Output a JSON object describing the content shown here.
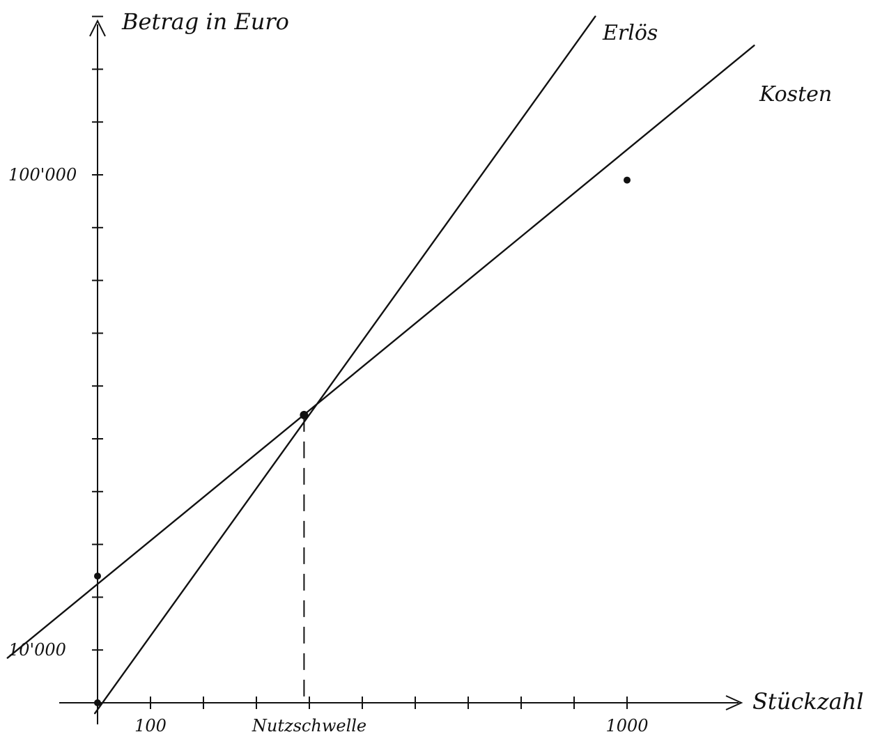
{
  "chart_data": {
    "type": "line",
    "title": "",
    "xlabel": "Stückzahl",
    "ylabel": "Betrag in Euro",
    "xlim": [
      -180,
      1250
    ],
    "ylim": [
      0,
      140000
    ],
    "x_ticks": [
      {
        "value": 100,
        "label": "100"
      },
      {
        "value": 400,
        "label": "Nutzschwelle"
      },
      {
        "value": 1000,
        "label": 1000
      }
    ],
    "y_ticks": [
      {
        "value": 10000,
        "label": "10'000"
      },
      {
        "value": 100000,
        "label": "100'000"
      }
    ],
    "series": [
      {
        "name": "Erlös",
        "x": [
          -5,
          940
        ],
        "y": [
          -2000,
          130000
        ]
      },
      {
        "name": "Kosten",
        "x": [
          -170,
          1240
        ],
        "y": [
          8500,
          124500
        ]
      }
    ],
    "points": [
      {
        "x": 0,
        "y": 0
      },
      {
        "x": 0,
        "y": 24000
      },
      {
        "x": 390,
        "y": 54500
      },
      {
        "x": 1000,
        "y": 99000
      }
    ],
    "breakeven": {
      "x": 390,
      "y": 54500,
      "label": "Nutzschwelle"
    }
  }
}
